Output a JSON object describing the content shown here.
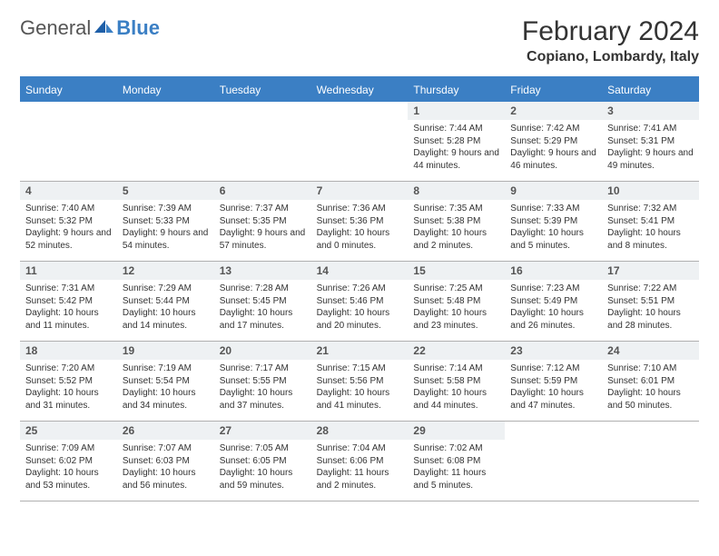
{
  "logo": {
    "general": "General",
    "blue": "Blue"
  },
  "month_title": "February 2024",
  "location": "Copiano, Lombardy, Italy",
  "colors": {
    "accent": "#3b7fc4",
    "header_bg": "#3b7fc4",
    "daynum_bg": "#eef1f3",
    "border": "#b0b0b0",
    "text": "#333333"
  },
  "day_headers": [
    "Sunday",
    "Monday",
    "Tuesday",
    "Wednesday",
    "Thursday",
    "Friday",
    "Saturday"
  ],
  "grid": [
    [
      null,
      null,
      null,
      null,
      {
        "n": "1",
        "sr": "7:44 AM",
        "ss": "5:28 PM",
        "dl": "9 hours and 44 minutes."
      },
      {
        "n": "2",
        "sr": "7:42 AM",
        "ss": "5:29 PM",
        "dl": "9 hours and 46 minutes."
      },
      {
        "n": "3",
        "sr": "7:41 AM",
        "ss": "5:31 PM",
        "dl": "9 hours and 49 minutes."
      }
    ],
    [
      {
        "n": "4",
        "sr": "7:40 AM",
        "ss": "5:32 PM",
        "dl": "9 hours and 52 minutes."
      },
      {
        "n": "5",
        "sr": "7:39 AM",
        "ss": "5:33 PM",
        "dl": "9 hours and 54 minutes."
      },
      {
        "n": "6",
        "sr": "7:37 AM",
        "ss": "5:35 PM",
        "dl": "9 hours and 57 minutes."
      },
      {
        "n": "7",
        "sr": "7:36 AM",
        "ss": "5:36 PM",
        "dl": "10 hours and 0 minutes."
      },
      {
        "n": "8",
        "sr": "7:35 AM",
        "ss": "5:38 PM",
        "dl": "10 hours and 2 minutes."
      },
      {
        "n": "9",
        "sr": "7:33 AM",
        "ss": "5:39 PM",
        "dl": "10 hours and 5 minutes."
      },
      {
        "n": "10",
        "sr": "7:32 AM",
        "ss": "5:41 PM",
        "dl": "10 hours and 8 minutes."
      }
    ],
    [
      {
        "n": "11",
        "sr": "7:31 AM",
        "ss": "5:42 PM",
        "dl": "10 hours and 11 minutes."
      },
      {
        "n": "12",
        "sr": "7:29 AM",
        "ss": "5:44 PM",
        "dl": "10 hours and 14 minutes."
      },
      {
        "n": "13",
        "sr": "7:28 AM",
        "ss": "5:45 PM",
        "dl": "10 hours and 17 minutes."
      },
      {
        "n": "14",
        "sr": "7:26 AM",
        "ss": "5:46 PM",
        "dl": "10 hours and 20 minutes."
      },
      {
        "n": "15",
        "sr": "7:25 AM",
        "ss": "5:48 PM",
        "dl": "10 hours and 23 minutes."
      },
      {
        "n": "16",
        "sr": "7:23 AM",
        "ss": "5:49 PM",
        "dl": "10 hours and 26 minutes."
      },
      {
        "n": "17",
        "sr": "7:22 AM",
        "ss": "5:51 PM",
        "dl": "10 hours and 28 minutes."
      }
    ],
    [
      {
        "n": "18",
        "sr": "7:20 AM",
        "ss": "5:52 PM",
        "dl": "10 hours and 31 minutes."
      },
      {
        "n": "19",
        "sr": "7:19 AM",
        "ss": "5:54 PM",
        "dl": "10 hours and 34 minutes."
      },
      {
        "n": "20",
        "sr": "7:17 AM",
        "ss": "5:55 PM",
        "dl": "10 hours and 37 minutes."
      },
      {
        "n": "21",
        "sr": "7:15 AM",
        "ss": "5:56 PM",
        "dl": "10 hours and 41 minutes."
      },
      {
        "n": "22",
        "sr": "7:14 AM",
        "ss": "5:58 PM",
        "dl": "10 hours and 44 minutes."
      },
      {
        "n": "23",
        "sr": "7:12 AM",
        "ss": "5:59 PM",
        "dl": "10 hours and 47 minutes."
      },
      {
        "n": "24",
        "sr": "7:10 AM",
        "ss": "6:01 PM",
        "dl": "10 hours and 50 minutes."
      }
    ],
    [
      {
        "n": "25",
        "sr": "7:09 AM",
        "ss": "6:02 PM",
        "dl": "10 hours and 53 minutes."
      },
      {
        "n": "26",
        "sr": "7:07 AM",
        "ss": "6:03 PM",
        "dl": "10 hours and 56 minutes."
      },
      {
        "n": "27",
        "sr": "7:05 AM",
        "ss": "6:05 PM",
        "dl": "10 hours and 59 minutes."
      },
      {
        "n": "28",
        "sr": "7:04 AM",
        "ss": "6:06 PM",
        "dl": "11 hours and 2 minutes."
      },
      {
        "n": "29",
        "sr": "7:02 AM",
        "ss": "6:08 PM",
        "dl": "11 hours and 5 minutes."
      },
      null,
      null
    ]
  ],
  "labels": {
    "sunrise": "Sunrise:",
    "sunset": "Sunset:",
    "daylight": "Daylight:"
  }
}
